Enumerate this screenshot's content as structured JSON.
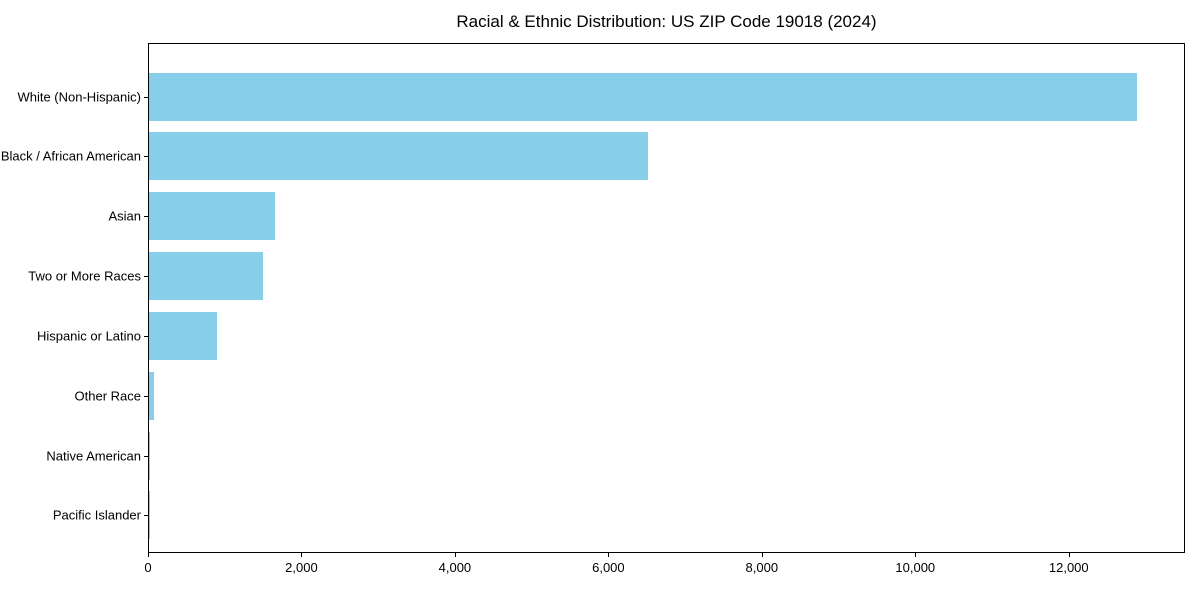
{
  "chart_data": {
    "type": "bar",
    "orientation": "horizontal",
    "title": "Racial & Ethnic Distribution: US ZIP Code 19018 (2024)",
    "categories": [
      "White (Non-Hispanic)",
      "Black / African American",
      "Asian",
      "Two or More Races",
      "Hispanic or Latino",
      "Other Race",
      "Native American",
      "Pacific Islander"
    ],
    "values": [
      12870,
      6500,
      1640,
      1490,
      890,
      70,
      15,
      5
    ],
    "xlabel": "",
    "ylabel": "",
    "xlim": [
      0,
      13515
    ],
    "x_ticks": [
      0,
      2000,
      4000,
      6000,
      8000,
      10000,
      12000
    ],
    "x_tick_labels": [
      "0",
      "2,000",
      "4,000",
      "6,000",
      "8,000",
      "10,000",
      "12,000"
    ],
    "bar_color": "#87CEEB",
    "background_color": "#ffffff",
    "axis_color": "#000000",
    "grid": false,
    "legend": "none"
  }
}
